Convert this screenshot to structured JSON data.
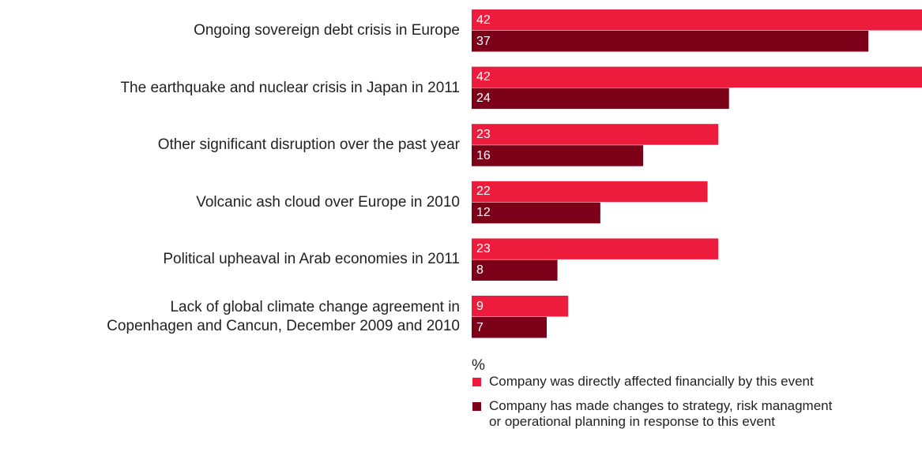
{
  "chart_data": {
    "type": "bar",
    "orientation": "horizontal",
    "categories": [
      "Ongoing sovereign debt crisis in Europe",
      "The earthquake and nuclear crisis in Japan in 2011",
      "Other significant disruption over the past year",
      "Volcanic ash cloud over Europe in 2010",
      "Political upheaval in Arab economies in 2011",
      "Lack of global climate change agreement in\nCopenhagen and Cancun, December 2009 and 2010"
    ],
    "series": [
      {
        "name": "Company was directly affected financially by this event",
        "color": "#ee1c3c",
        "values": [
          42,
          42,
          23,
          22,
          23,
          9
        ]
      },
      {
        "name": "Company has made changes to strategy, risk managment\nor operational planning in response to this event",
        "color": "#7d0019",
        "values": [
          37,
          24,
          16,
          12,
          8,
          7
        ]
      }
    ],
    "xlim": [
      0,
      42
    ],
    "x_label": "%"
  }
}
